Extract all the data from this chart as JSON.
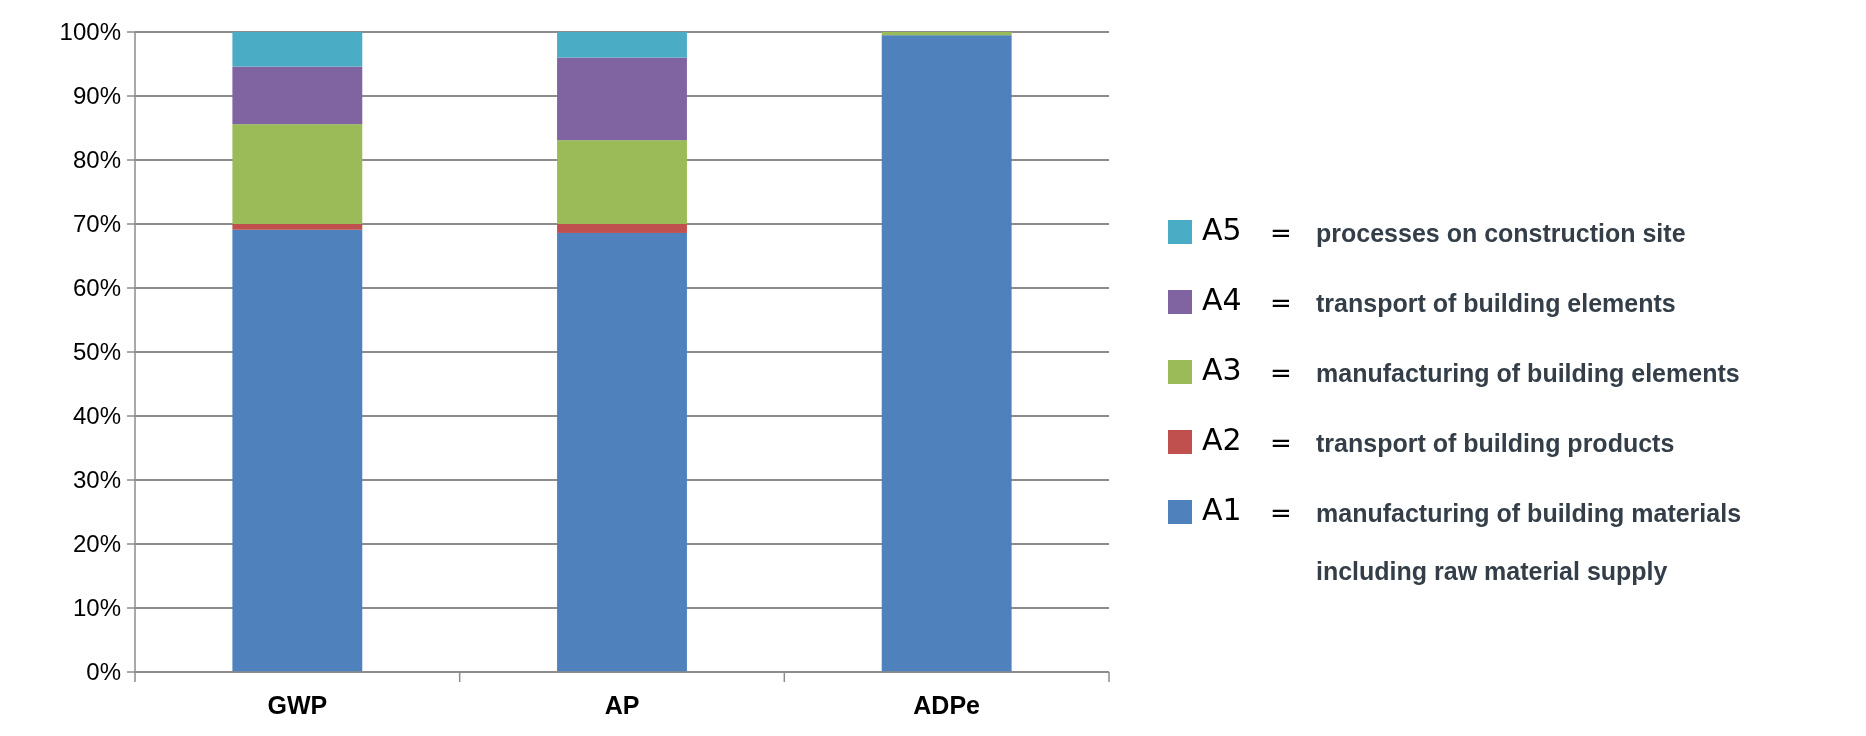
{
  "chart_data": {
    "type": "bar",
    "stacked": true,
    "categories": [
      "GWP",
      "AP",
      "ADPe"
    ],
    "series": [
      {
        "name": "A1 = manufacturing of building materials including raw material supply",
        "color": "#4f81bd",
        "values": [
          69.1,
          68.6,
          99.5
        ]
      },
      {
        "name": "A2 = transport of building products",
        "color": "#c0504d",
        "values": [
          0.9,
          1.4,
          0
        ]
      },
      {
        "name": "A3 = manufacturing of building elements",
        "color": "#9bbb59",
        "values": [
          15.6,
          13.1,
          0.5
        ]
      },
      {
        "name": "A4 = transport of building elements",
        "color": "#8064a2",
        "values": [
          9.0,
          12.9,
          0
        ]
      },
      {
        "name": "A5 = processes on construction site",
        "color": "#4bacc6",
        "values": [
          5.4,
          4.0,
          0
        ]
      }
    ],
    "ylim": [
      0,
      100
    ],
    "yticks": [
      {
        "value": 0,
        "label": "0%"
      },
      {
        "value": 10,
        "label": "10%"
      },
      {
        "value": 20,
        "label": "20%"
      },
      {
        "value": 30,
        "label": "30%"
      },
      {
        "value": 40,
        "label": "40%"
      },
      {
        "value": 50,
        "label": "50%"
      },
      {
        "value": 60,
        "label": "60%"
      },
      {
        "value": 70,
        "label": "70%"
      },
      {
        "value": 80,
        "label": "80%"
      },
      {
        "value": 90,
        "label": "90%"
      },
      {
        "value": 100,
        "label": "100%"
      }
    ],
    "grid": "y",
    "legend": "right"
  }
}
